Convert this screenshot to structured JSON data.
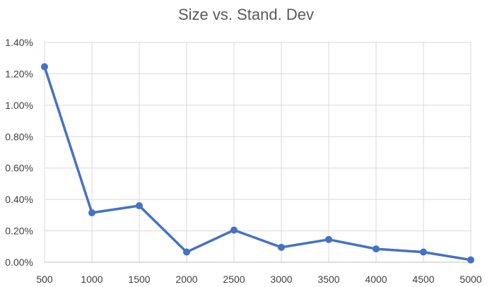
{
  "chart_data": {
    "type": "line",
    "title": "Size vs. Stand. Dev",
    "xlabel": "",
    "ylabel": "",
    "x": [
      500,
      1000,
      1500,
      2000,
      2500,
      3000,
      3500,
      4000,
      4500,
      5000
    ],
    "x_tick_labels": [
      "500",
      "1000",
      "1500",
      "2000",
      "2500",
      "3000",
      "3500",
      "4000",
      "4500",
      "5000"
    ],
    "y_tick_values": [
      0,
      0.002,
      0.004,
      0.006,
      0.008,
      0.01,
      0.012,
      0.014
    ],
    "y_tick_labels": [
      "0.00%",
      "0.20%",
      "0.40%",
      "0.60%",
      "0.80%",
      "1.00%",
      "1.20%",
      "1.40%"
    ],
    "xlim": [
      500,
      5000
    ],
    "ylim": [
      0,
      0.014
    ],
    "grid": true,
    "legend": "none",
    "series": [
      {
        "values": [
          0.01245,
          0.00315,
          0.0036,
          0.00065,
          0.00205,
          0.00095,
          0.00145,
          0.00085,
          0.00065,
          0.00015
        ],
        "color": "#4472c4"
      }
    ]
  }
}
